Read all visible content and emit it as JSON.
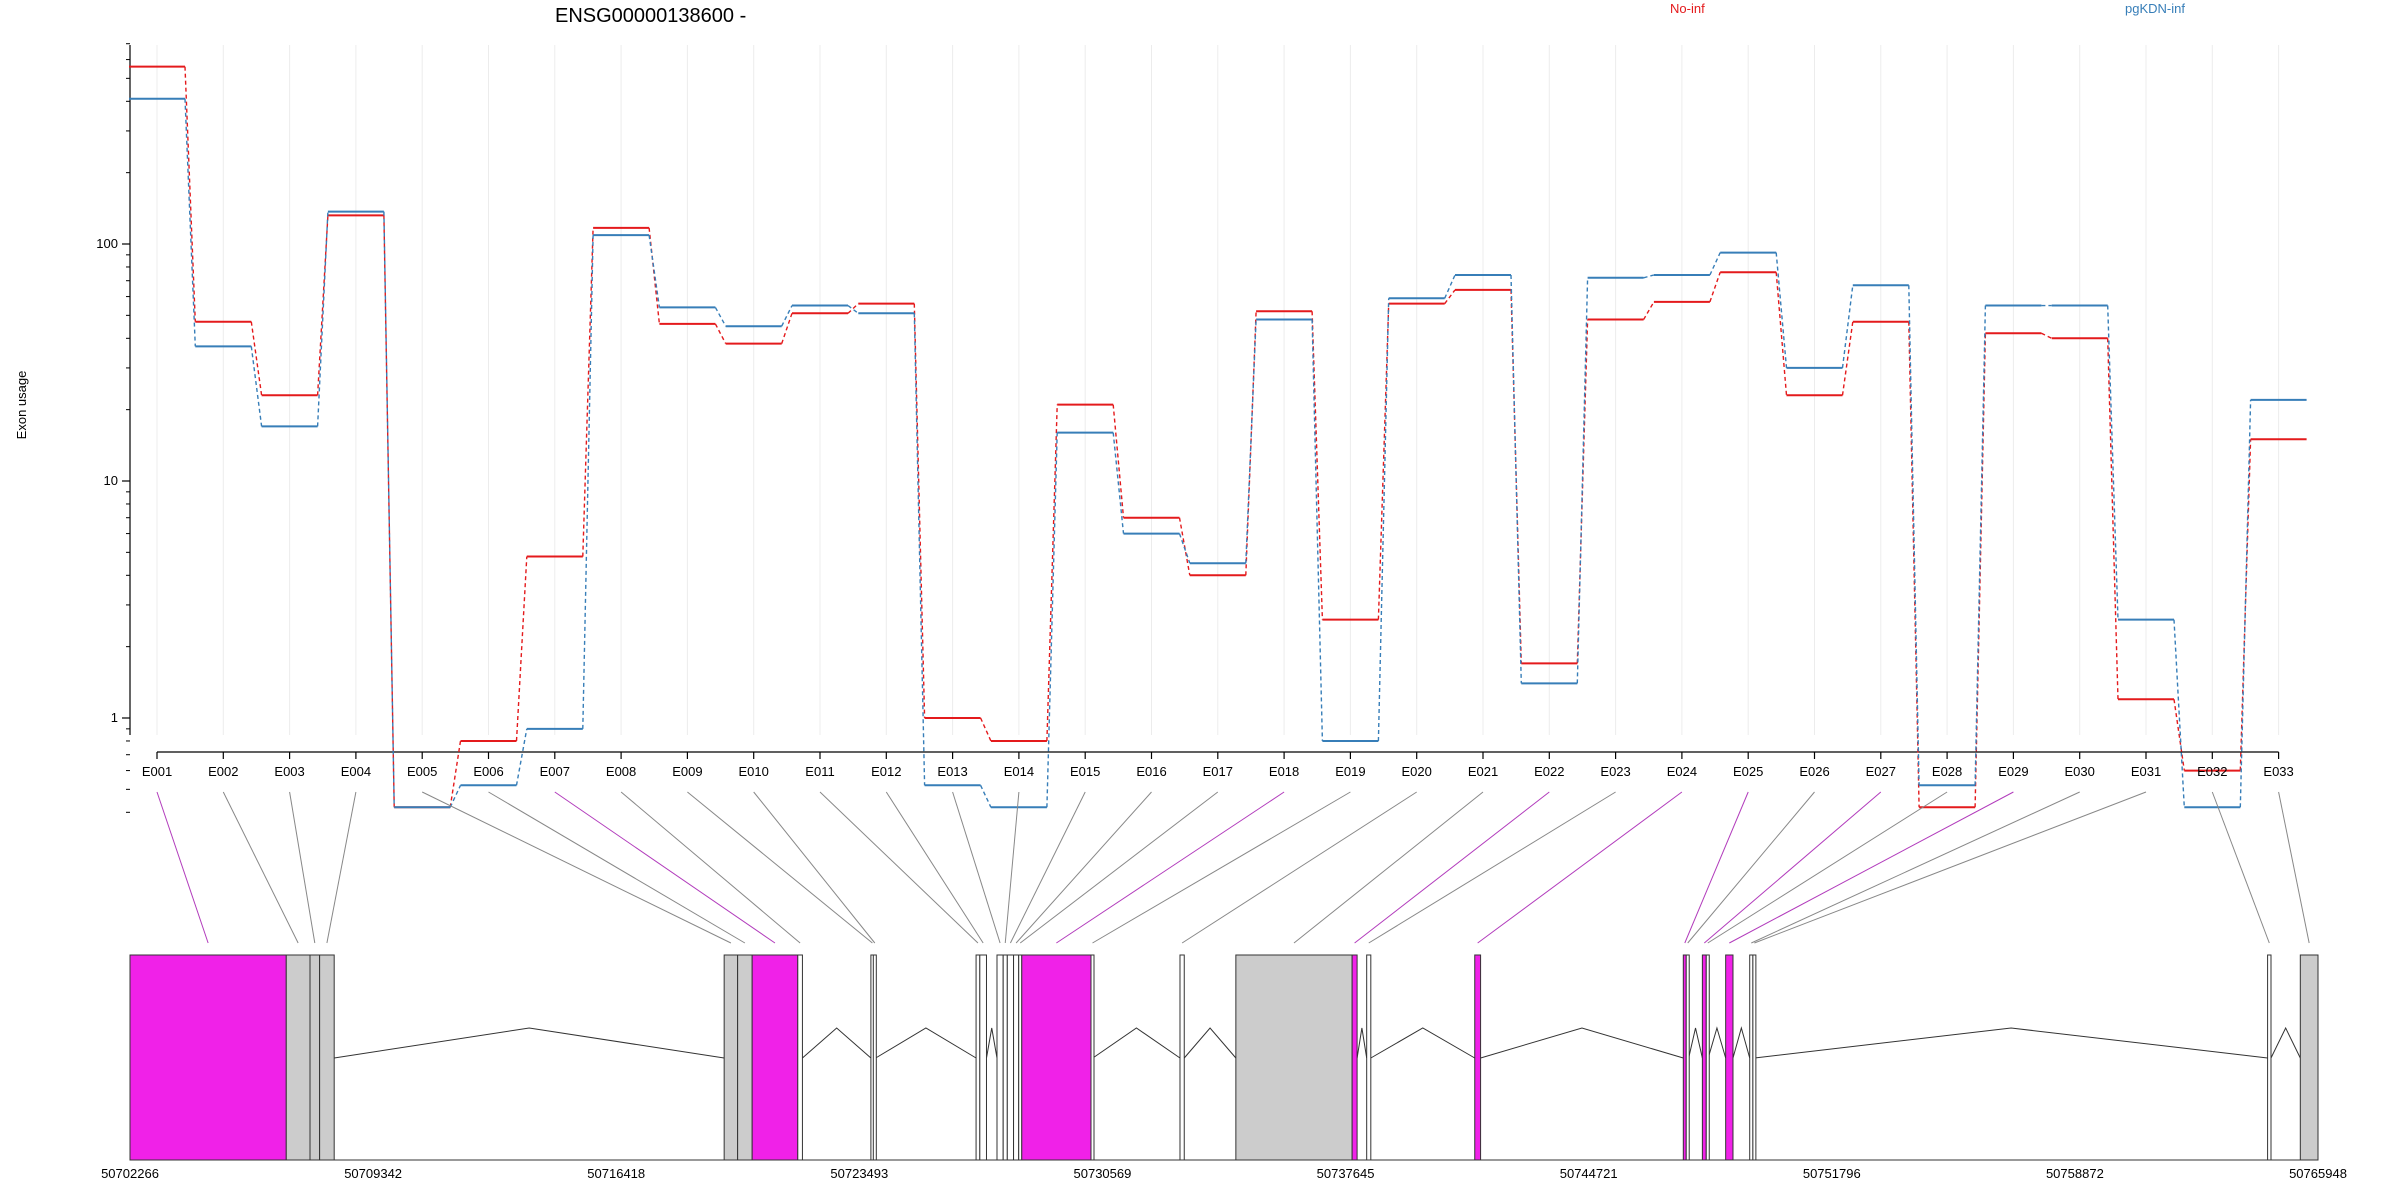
{
  "chart_data": {
    "type": "line",
    "title": "ENSG00000138600 -",
    "ylabel": "Exon usage",
    "yscale": "log",
    "ylim": [
      0.4,
      700
    ],
    "yticks": [
      "1",
      "10",
      "100"
    ],
    "yticks_values": [
      1,
      10,
      100
    ],
    "categories": [
      "E001",
      "E002",
      "E003",
      "E004",
      "E005",
      "E006",
      "E007",
      "E008",
      "E009",
      "E010",
      "E011",
      "E012",
      "E013",
      "E014",
      "E015",
      "E016",
      "E017",
      "E018",
      "E019",
      "E020",
      "E021",
      "E022",
      "E023",
      "E024",
      "E025",
      "E026",
      "E027",
      "E028",
      "E029",
      "E030",
      "E031",
      "E032",
      "E033"
    ],
    "series": [
      {
        "name": "No-inf",
        "color": "#e41a1c",
        "values": [
          560,
          47,
          23,
          132,
          0.42,
          0.8,
          4.8,
          117,
          46,
          38,
          51,
          56,
          1.0,
          0.8,
          21,
          7,
          4,
          52,
          2.6,
          56,
          64,
          1.7,
          48,
          57,
          76,
          23,
          47,
          0.42,
          42,
          40,
          1.2,
          0.6,
          15
        ]
      },
      {
        "name": "pgKDN-inf",
        "color": "#377eb8",
        "values": [
          410,
          37,
          17,
          137,
          0.42,
          0.52,
          0.9,
          109,
          54,
          45,
          55,
          51,
          0.52,
          0.42,
          16,
          6,
          4.5,
          48,
          0.8,
          59,
          74,
          1.4,
          72,
          74,
          92,
          30,
          67,
          0.52,
          55,
          55,
          2.6,
          0.42,
          22
        ]
      }
    ],
    "gene_model": {
      "coord_labels": [
        "50702266",
        "50709342",
        "50716418",
        "50723493",
        "50730569",
        "50737645",
        "50744721",
        "50751796",
        "50758872",
        "50765948"
      ],
      "range": [
        50702266,
        50765948
      ],
      "highlight_color": "#f021e8",
      "exons": [
        {
          "id": "E001",
          "start": 50702266,
          "end": 50706814,
          "highlight": true
        },
        {
          "id": "E002",
          "start": 50706814,
          "end": 50707505,
          "highlight": false
        },
        {
          "id": "E003",
          "start": 50707505,
          "end": 50707785,
          "highlight": false
        },
        {
          "id": "E004",
          "start": 50707785,
          "end": 50708209,
          "highlight": false
        },
        {
          "id": "E005",
          "start": 50719559,
          "end": 50719951,
          "highlight": false
        },
        {
          "id": "E006",
          "start": 50719951,
          "end": 50720374,
          "highlight": false
        },
        {
          "id": "E007",
          "start": 50720374,
          "end": 50721702,
          "highlight": true
        },
        {
          "id": "E008",
          "start": 50721702,
          "end": 50721837,
          "highlight": false
        },
        {
          "id": "E009",
          "start": 50723830,
          "end": 50723900,
          "highlight": false
        },
        {
          "id": "E010",
          "start": 50723900,
          "end": 50723970,
          "highlight": false
        },
        {
          "id": "E011",
          "start": 50726891,
          "end": 50727000,
          "highlight": false
        },
        {
          "id": "E012",
          "start": 50727000,
          "end": 50727194,
          "highlight": false
        },
        {
          "id": "E013",
          "start": 50727500,
          "end": 50727680,
          "highlight": false
        },
        {
          "id": "E014",
          "start": 50727680,
          "end": 50727800,
          "highlight": false
        },
        {
          "id": "E015",
          "start": 50727800,
          "end": 50727982,
          "highlight": false
        },
        {
          "id": "E016",
          "start": 50727982,
          "end": 50728132,
          "highlight": false
        },
        {
          "id": "E017",
          "start": 50728132,
          "end": 50728221,
          "highlight": false
        },
        {
          "id": "E018",
          "start": 50728221,
          "end": 50730236,
          "highlight": true
        },
        {
          "id": "E019",
          "start": 50730236,
          "end": 50730290,
          "highlight": false
        },
        {
          "id": "E020",
          "start": 50732826,
          "end": 50732950,
          "highlight": false
        },
        {
          "id": "E021",
          "start": 50734452,
          "end": 50737836,
          "highlight": false
        },
        {
          "id": "E022",
          "start": 50737836,
          "end": 50737981,
          "highlight": true
        },
        {
          "id": "E023",
          "start": 50738260,
          "end": 50738380,
          "highlight": false
        },
        {
          "id": "E024",
          "start": 50741405,
          "end": 50741575,
          "highlight": true
        },
        {
          "id": "E025",
          "start": 50747475,
          "end": 50747560,
          "highlight": true
        },
        {
          "id": "E026",
          "start": 50747560,
          "end": 50747631,
          "highlight": false
        },
        {
          "id": "E027",
          "start": 50748030,
          "end": 50748143,
          "highlight": true
        },
        {
          "id": "E028",
          "start": 50748143,
          "end": 50748200,
          "highlight": false
        },
        {
          "id": "E029",
          "start": 50748708,
          "end": 50748921,
          "highlight": true
        },
        {
          "id": "E030",
          "start": 50749408,
          "end": 50749500,
          "highlight": false
        },
        {
          "id": "E031",
          "start": 50749500,
          "end": 50749550,
          "highlight": false
        },
        {
          "id": "E032",
          "start": 50764481,
          "end": 50764580,
          "highlight": false
        },
        {
          "id": "E033",
          "start": 50765433,
          "end": 50765948,
          "highlight": false
        }
      ]
    }
  }
}
